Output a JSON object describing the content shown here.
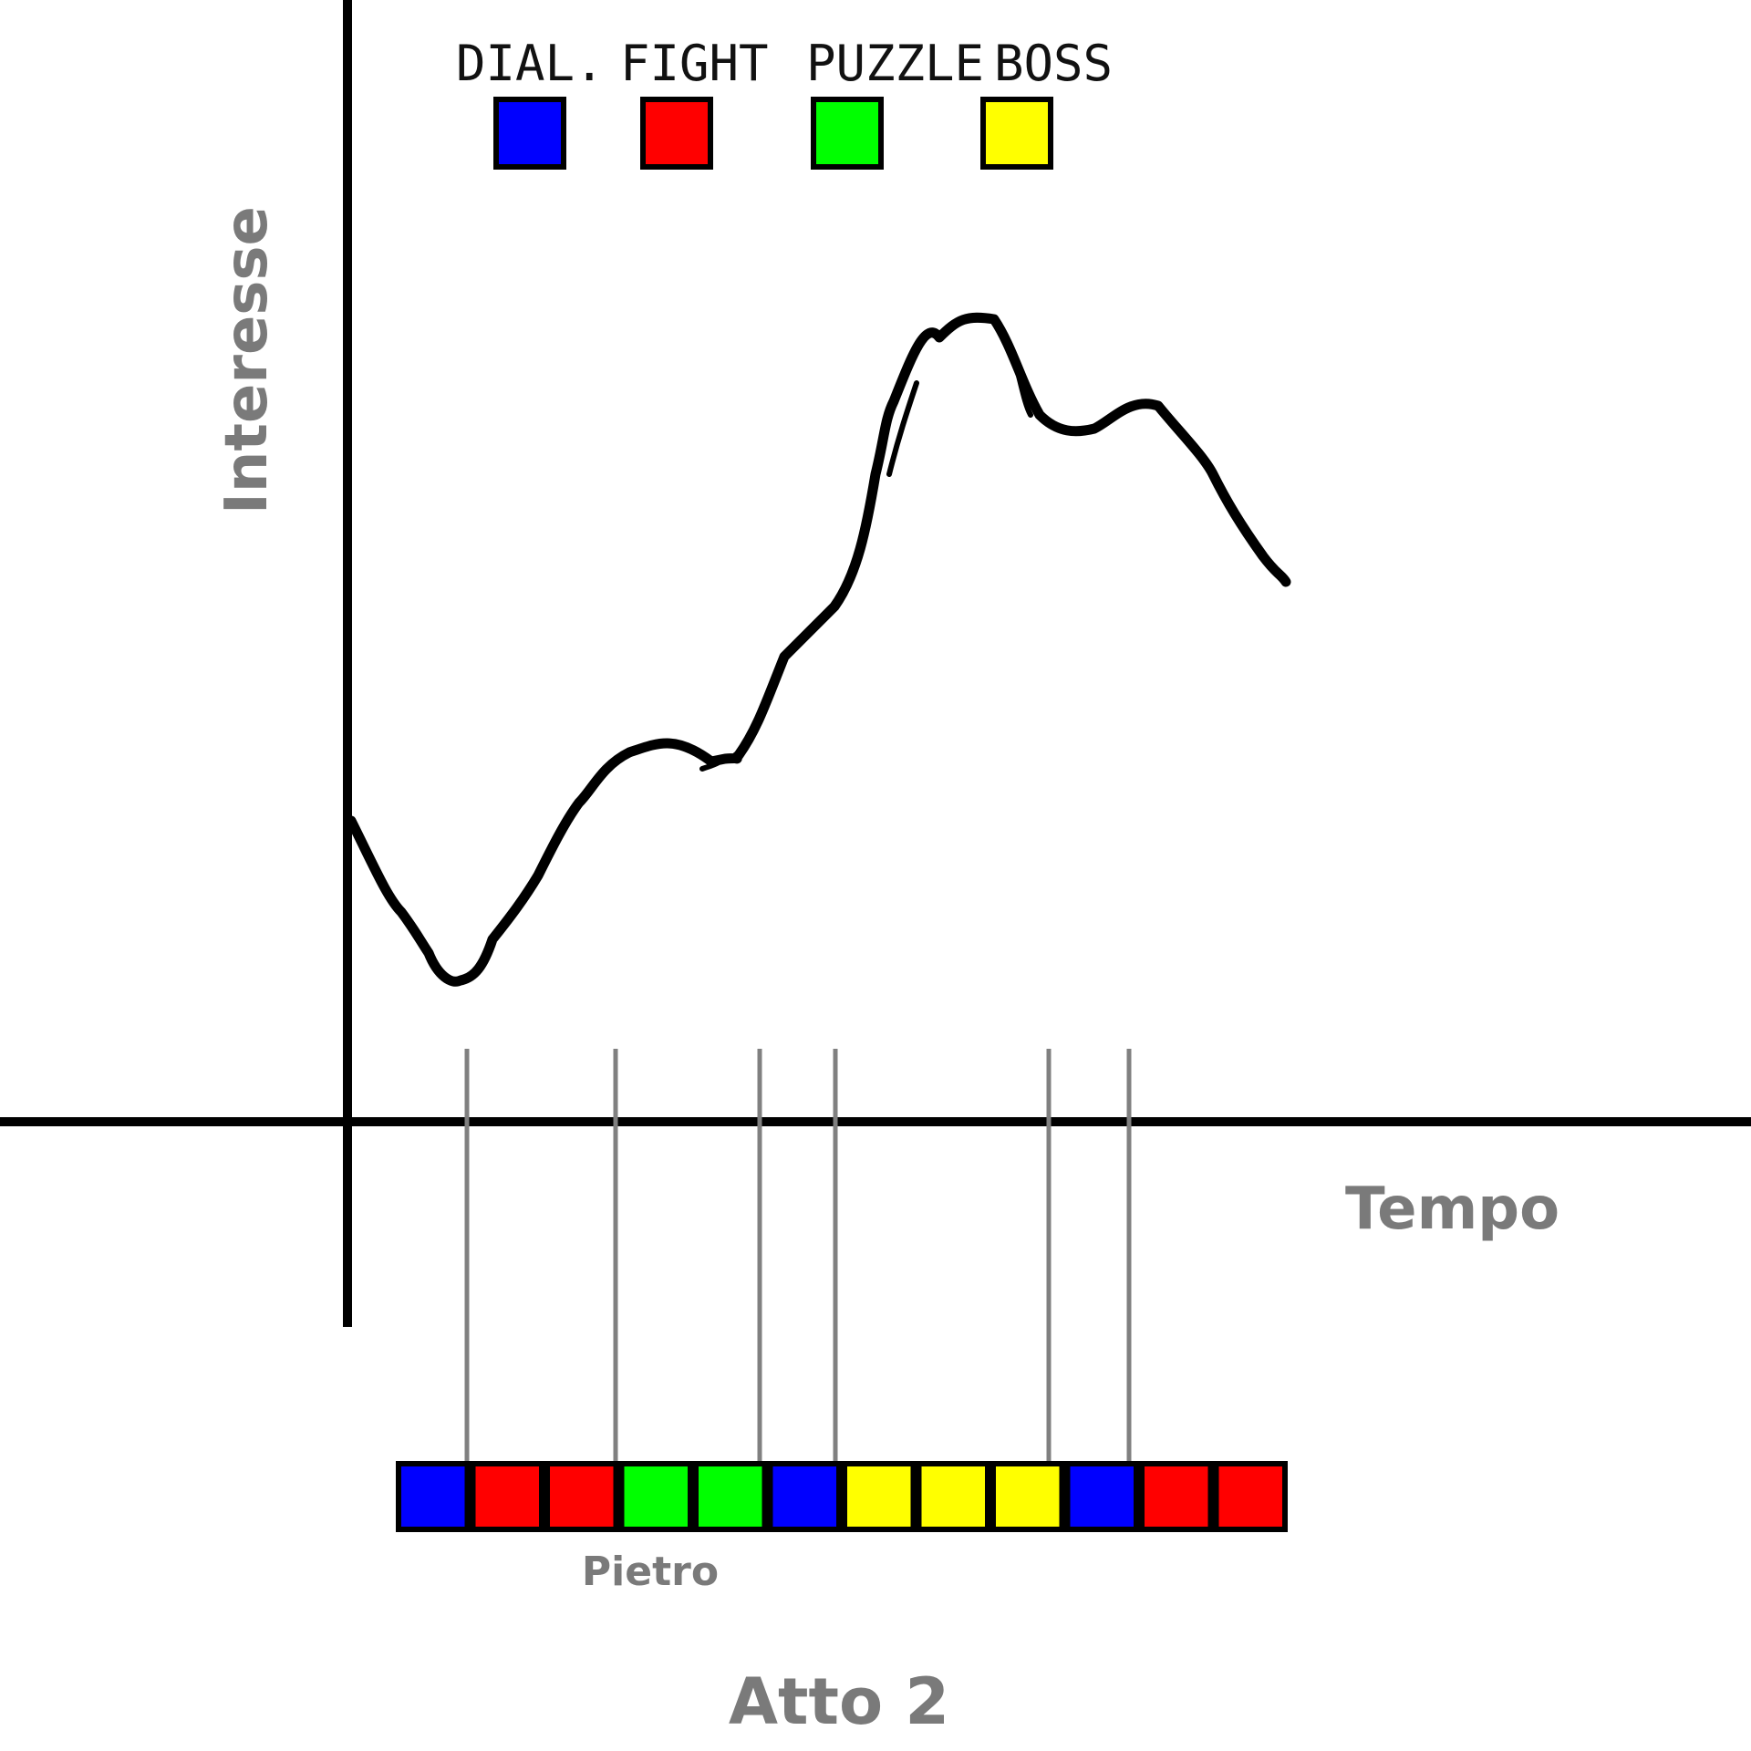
{
  "labels": {
    "y_axis": "Interesse",
    "x_axis": "Tempo",
    "strip_caption": "Pietro",
    "act_title": "Atto 2"
  },
  "legend": [
    {
      "name": "legend-dial",
      "label": "DIAL.",
      "color": "#0000ff"
    },
    {
      "name": "legend-fight",
      "label": "FIGHT",
      "color": "#ff0000"
    },
    {
      "name": "legend-puzzle",
      "label": "PUZZLE",
      "color": "#00ff00"
    },
    {
      "name": "legend-boss",
      "label": "BOSS",
      "color": "#ffff00"
    }
  ],
  "colors": {
    "axis": "#000000",
    "curve": "#000000",
    "guide": "#808080",
    "label_gray": "#7a7a7a"
  },
  "sequence": [
    "dial",
    "fight",
    "fight",
    "puzzle",
    "puzzle",
    "dial",
    "boss",
    "boss",
    "boss",
    "dial",
    "fight",
    "fight"
  ],
  "sequence_colors": {
    "dial": "#0000ff",
    "fight": "#ff0000",
    "puzzle": "#00ff00",
    "boss": "#ffff00"
  }
}
